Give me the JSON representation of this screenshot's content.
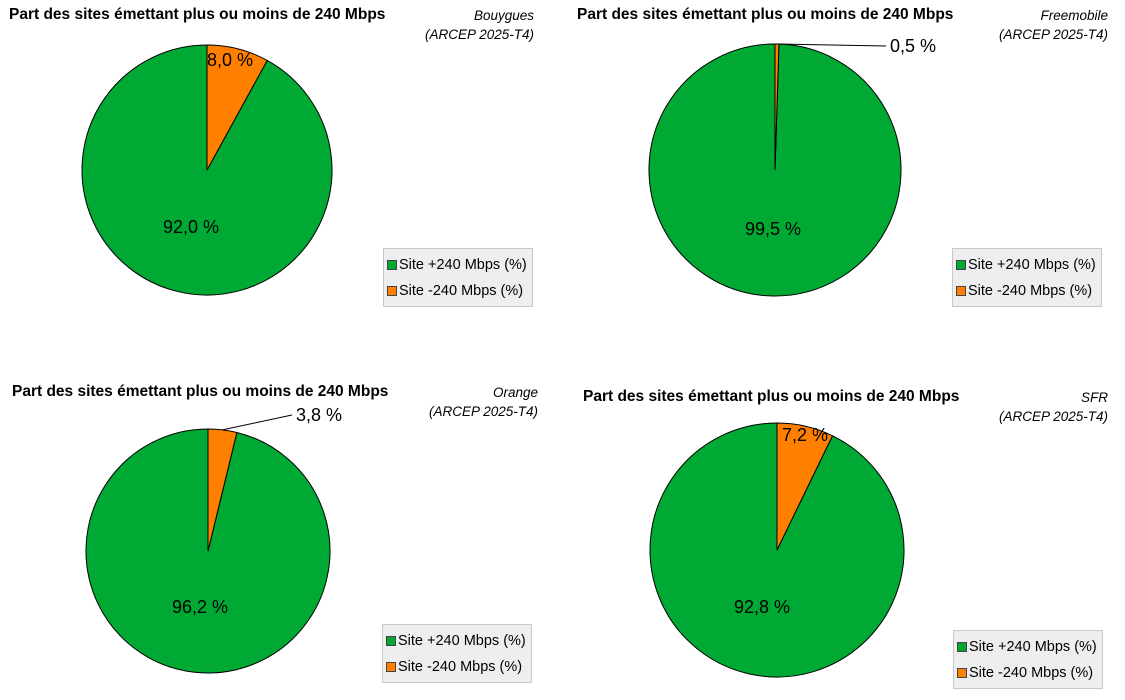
{
  "chart_data": [
    {
      "type": "pie",
      "title": "Part des sites émettant plus ou moins de 240 Mbps",
      "subtitle": [
        "Bouygues",
        "(ARCEP 2025-T4)"
      ],
      "categories": [
        "Site +240 Mbps (%)",
        "Site -240 Mbps (%)"
      ],
      "values": [
        92.0,
        8.0
      ],
      "labels": [
        "92,0 %",
        "8,0 %"
      ],
      "colors": [
        "#00a933",
        "#ff8000"
      ],
      "legend": "bottom-right"
    },
    {
      "type": "pie",
      "title": "Part des sites émettant plus ou moins de 240 Mbps",
      "subtitle": [
        "Freemobile",
        "(ARCEP 2025-T4)"
      ],
      "categories": [
        "Site +240 Mbps (%)",
        "Site -240 Mbps (%)"
      ],
      "values": [
        99.5,
        0.5
      ],
      "labels": [
        "99,5 %",
        "0,5 %"
      ],
      "colors": [
        "#00a933",
        "#ff8000"
      ],
      "legend": "bottom-right"
    },
    {
      "type": "pie",
      "title": "Part des sites émettant plus ou moins de 240 Mbps",
      "subtitle": [
        "Orange",
        "(ARCEP 2025-T4)"
      ],
      "categories": [
        "Site +240 Mbps (%)",
        "Site -240 Mbps (%)"
      ],
      "values": [
        96.2,
        3.8
      ],
      "labels": [
        "96,2 %",
        "3,8 %"
      ],
      "colors": [
        "#00a933",
        "#ff8000"
      ],
      "legend": "bottom-right"
    },
    {
      "type": "pie",
      "title": "Part des sites émettant plus ou moins de 240 Mbps",
      "subtitle": [
        "SFR",
        "(ARCEP 2025-T4)"
      ],
      "categories": [
        "Site +240 Mbps (%)",
        "Site -240 Mbps (%)"
      ],
      "values": [
        92.8,
        7.2
      ],
      "labels": [
        "92,8 %",
        "7,2 %"
      ],
      "colors": [
        "#00a933",
        "#ff8000"
      ],
      "legend": "bottom-right"
    }
  ]
}
